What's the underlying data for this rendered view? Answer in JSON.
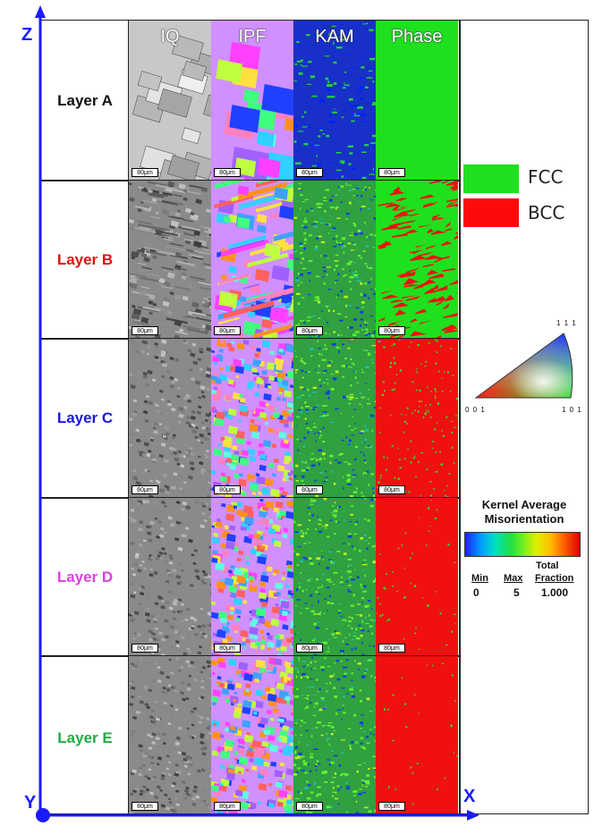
{
  "axes": {
    "z": "Z",
    "y": "Y",
    "x": "X",
    "color": "#1a1aff"
  },
  "columns": [
    "IQ",
    "IPF",
    "KAM",
    "Phase"
  ],
  "layers": [
    {
      "label": "Layer A",
      "color": "#111111"
    },
    {
      "label": "Layer B",
      "color": "#e01010"
    },
    {
      "label": "Layer C",
      "color": "#1a1ad6"
    },
    {
      "label": "Layer D",
      "color": "#e040e0"
    },
    {
      "label": "Layer E",
      "color": "#22aa44"
    }
  ],
  "scalebar": "80μm",
  "phase_legend": [
    {
      "label": "FCC",
      "color": "#1ee01e"
    },
    {
      "label": "BCC",
      "color": "#ff0a0a"
    }
  ],
  "ipf_legend": {
    "top": "1 1 1",
    "left": "0 0 1",
    "right": "1 0 1"
  },
  "kam_legend": {
    "title_line1": "Kernel Average",
    "title_line2": "Misorientation",
    "min_label": "Min",
    "max_label": "Max",
    "total_label": "Total",
    "fraction_label": "Fraction",
    "min_value": "0",
    "max_value": "5",
    "fraction_value": "1.000"
  }
}
